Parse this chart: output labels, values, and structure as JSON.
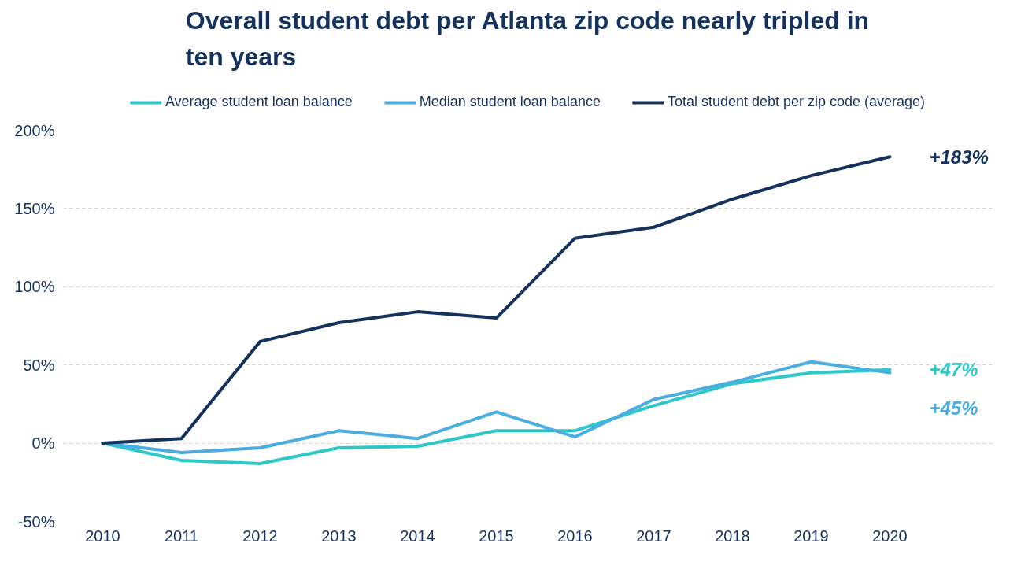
{
  "chart_data": {
    "type": "line",
    "title": "Overall student debt per Atlanta zip code nearly tripled in ten years",
    "categories": [
      "2010",
      "2011",
      "2012",
      "2013",
      "2014",
      "2015",
      "2016",
      "2017",
      "2018",
      "2019",
      "2020"
    ],
    "series": [
      {
        "name": "Average student loan balance",
        "color": "#2ec8c8",
        "values": [
          0,
          -11,
          -13,
          -3,
          -2,
          8,
          8,
          24,
          38,
          45,
          47
        ]
      },
      {
        "name": "Median student loan balance",
        "color": "#4aaee0",
        "values": [
          0,
          -6,
          -3,
          8,
          3,
          20,
          4,
          28,
          39,
          52,
          45
        ]
      },
      {
        "name": "Total student debt per zip code (average)",
        "color": "#14325c",
        "values": [
          0,
          3,
          65,
          77,
          84,
          80,
          131,
          138,
          156,
          171,
          183
        ]
      }
    ],
    "ylim": [
      -50,
      200
    ],
    "yticks": [
      {
        "value": -50,
        "label": "-50%"
      },
      {
        "value": 0,
        "label": "0%"
      },
      {
        "value": 50,
        "label": "50%"
      },
      {
        "value": 100,
        "label": "100%"
      },
      {
        "value": 150,
        "label": "150%"
      },
      {
        "value": 200,
        "label": "200%"
      }
    ],
    "grid": "y",
    "legend": "top",
    "marker": "none",
    "line_style": "solid",
    "annotations": [
      {
        "text": "+183%",
        "x": "2020",
        "y": 183
      },
      {
        "text": "+47%",
        "x": "2020",
        "y": 47
      },
      {
        "text": "+45%",
        "x": "2020",
        "y": 45
      }
    ]
  }
}
